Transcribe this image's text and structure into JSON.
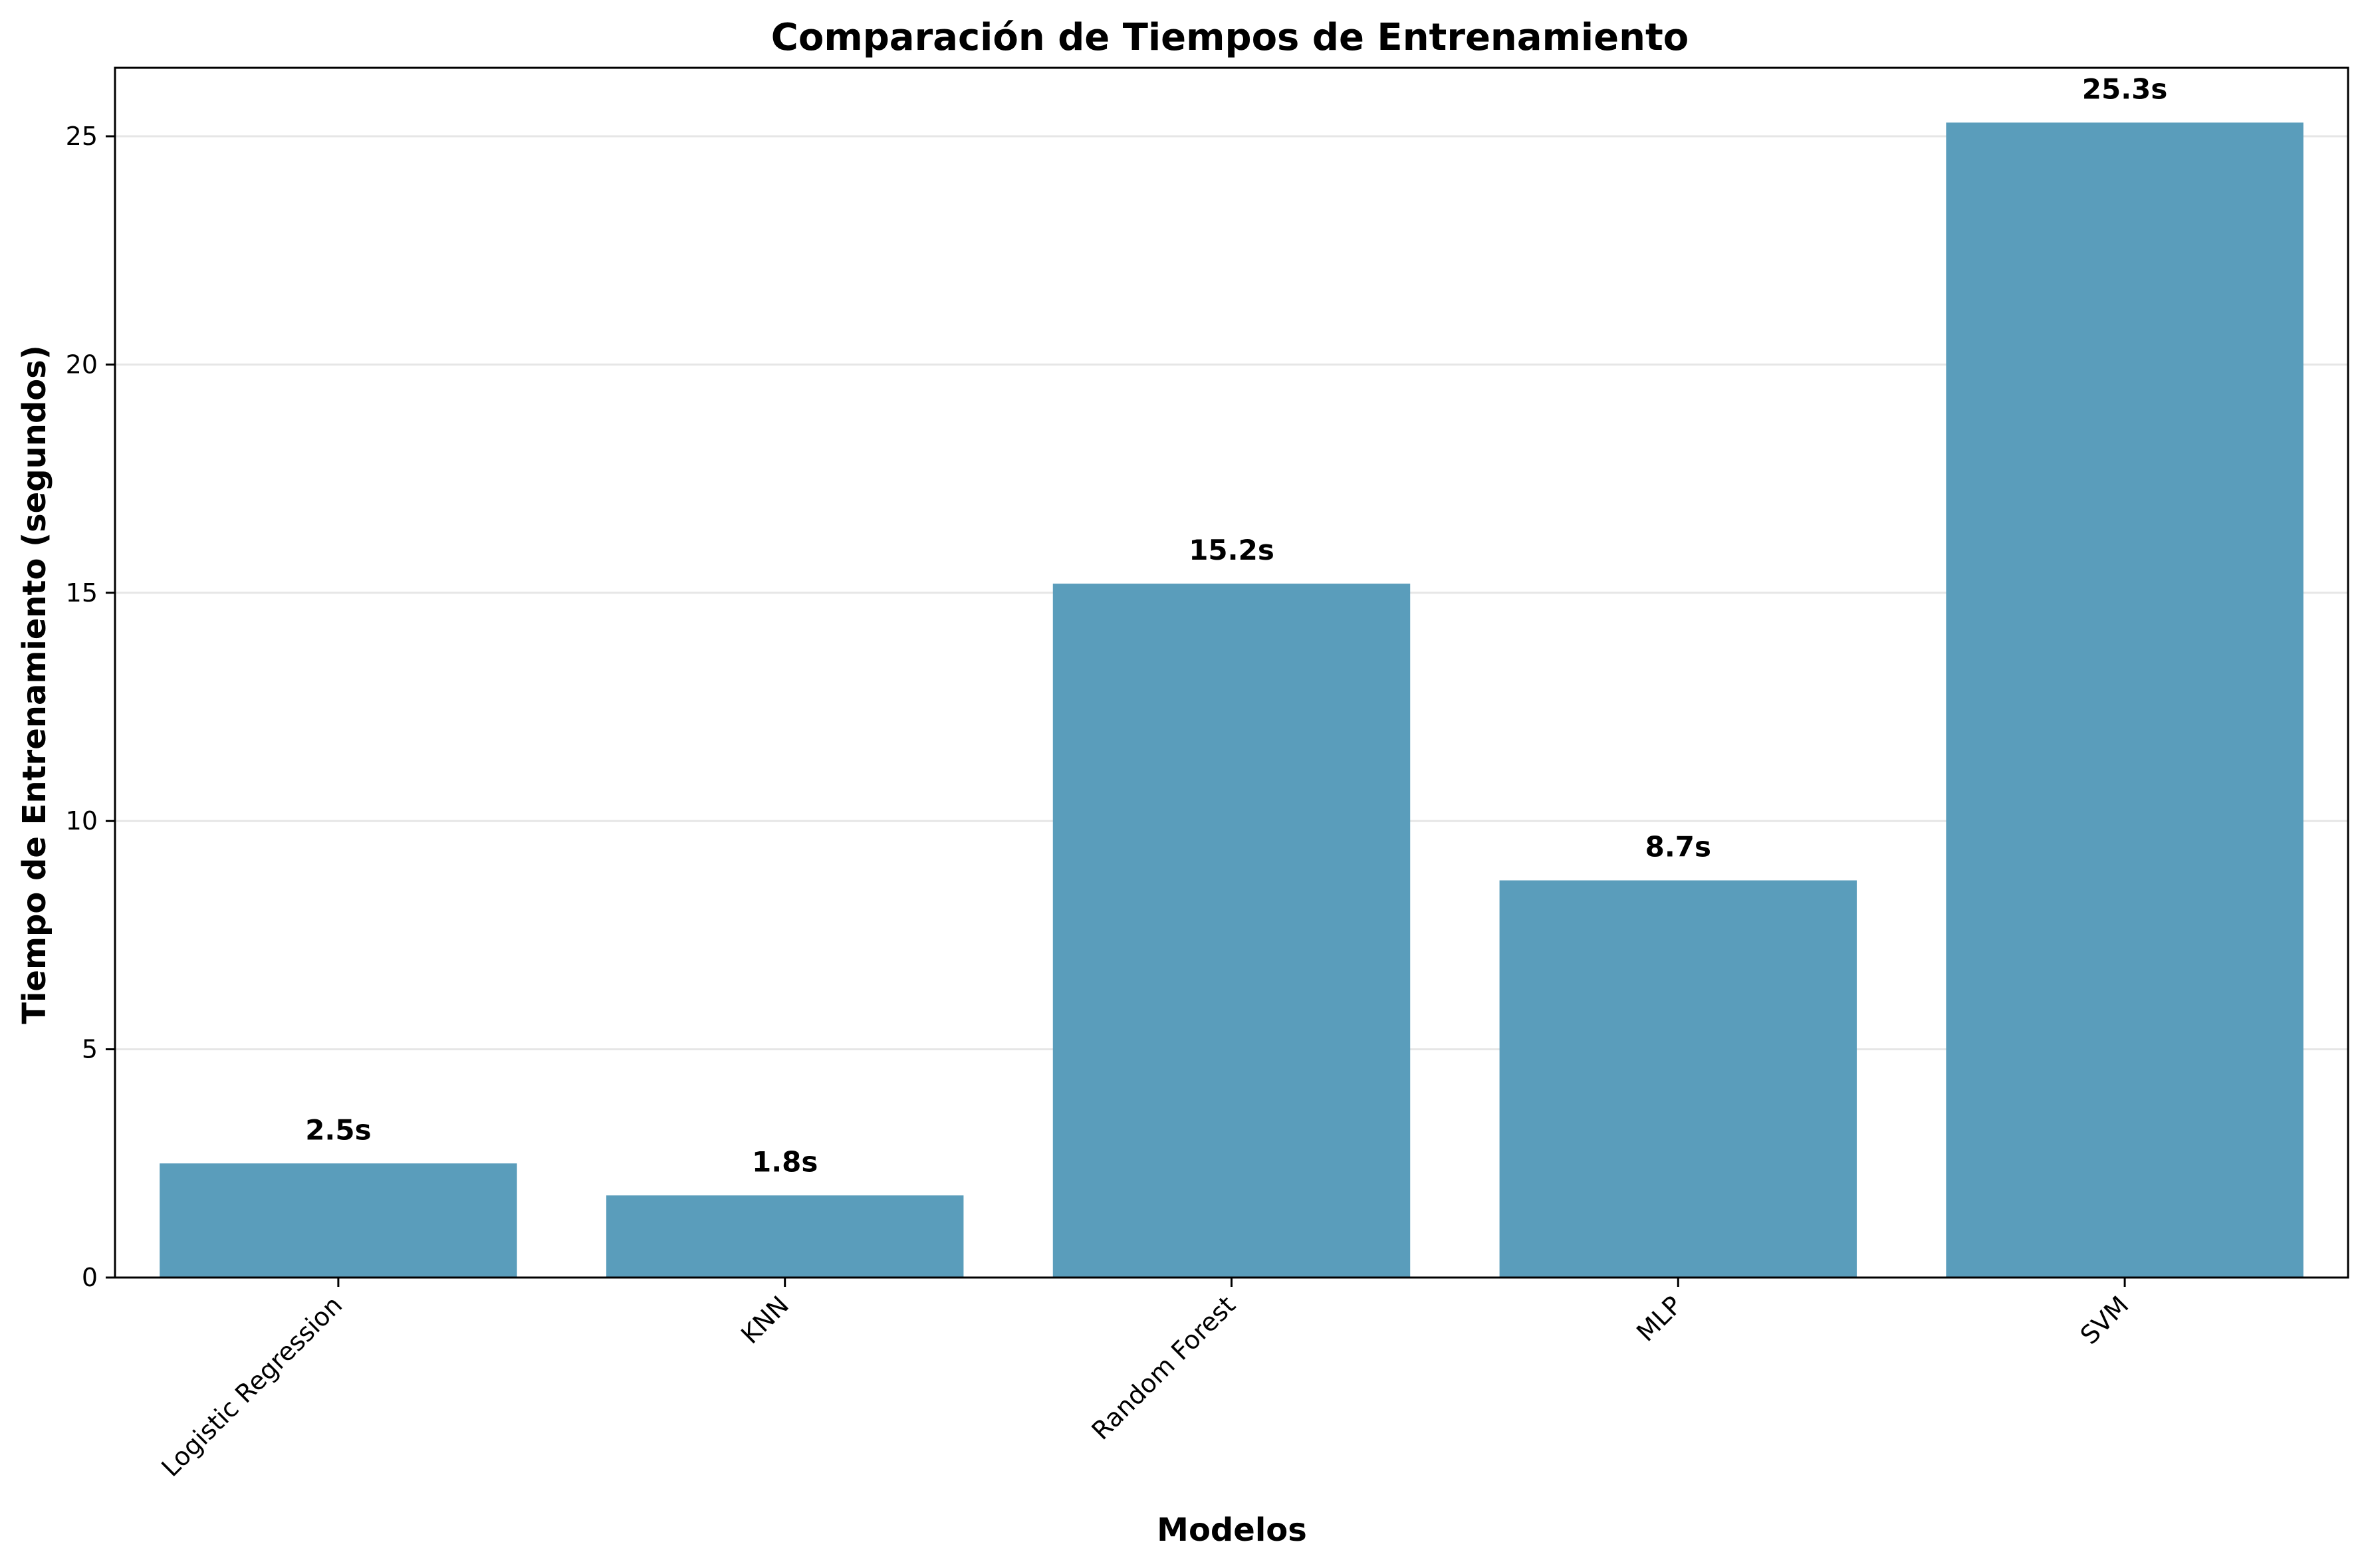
{
  "chart_data": {
    "type": "bar",
    "title": "Comparación de Tiempos de Entrenamiento",
    "xlabel": "Modelos",
    "ylabel": "Tiempo de Entrenamiento (segundos)",
    "categories": [
      "Logistic Regression",
      "KNN",
      "Random Forest",
      "MLP",
      "SVM"
    ],
    "values": [
      2.5,
      1.8,
      15.2,
      8.7,
      25.3
    ],
    "data_labels": [
      "2.5s",
      "1.8s",
      "15.2s",
      "8.7s",
      "25.3s"
    ],
    "ylim": [
      0,
      26.5
    ],
    "yticks": [
      0,
      5,
      10,
      15,
      20,
      25
    ],
    "grid": "y",
    "bar_color": "#5a9dbb",
    "grid_color": "#e6e6e6"
  }
}
